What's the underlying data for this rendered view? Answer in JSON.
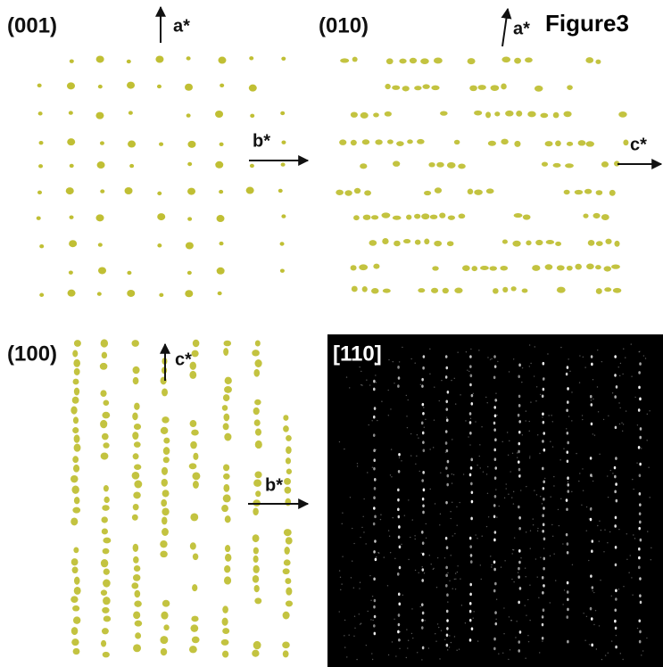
{
  "title": "Figure3",
  "panels": [
    {
      "label": "(001)",
      "axes": [
        "a*",
        "b*"
      ]
    },
    {
      "label": "(010)",
      "axes": [
        "a*",
        "c*"
      ]
    },
    {
      "label": "(100)",
      "axes": [
        "c*",
        "b*"
      ]
    },
    {
      "label": "[110]"
    }
  ]
}
